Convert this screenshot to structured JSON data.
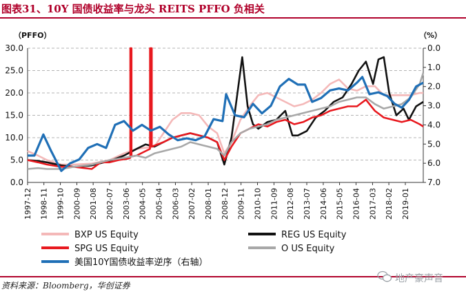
{
  "header": {
    "title": "图表31、10Y 国债收益率与龙头 REITS PFFO 负相关"
  },
  "footer": {
    "source": "资料来源：Bloomberg，华创证券",
    "watermark": "地产豪声音"
  },
  "colors": {
    "brand": "#b0002a",
    "BXP": "#f4b8b8",
    "REG": "#111111",
    "SPG": "#e8191f",
    "O": "#a8a8a8",
    "UST": "#1f6fb6"
  },
  "chart_data": {
    "type": "line",
    "left_axis_label": "（PFFO）",
    "right_axis_label": "（%）",
    "ylim_left": [
      0,
      30
    ],
    "ylim_right": [
      7,
      0
    ],
    "right_axis_inverted": true,
    "yticks_left": [
      "0.0",
      "5.0",
      "10.0",
      "15.0",
      "20.0",
      "25.0",
      "30.0"
    ],
    "yticks_right": [
      "7.0",
      "6.0",
      "5.0",
      "4.0",
      "3.0",
      "2.0",
      "1.0",
      "0.0"
    ],
    "grid": "horizontal dashed",
    "legend_position": "bottom",
    "x_range": [
      1997.92,
      2020.0
    ],
    "xtick_labels": [
      "1997-12",
      "1998-11",
      "1999-10",
      "2000-09",
      "2001-08",
      "2002-07",
      "2003-06",
      "2004-05",
      "2005-04",
      "2006-03",
      "2007-02",
      "2008-01",
      "2008-12",
      "2009-11",
      "2010-10",
      "2011-09",
      "2012-08",
      "2013-07",
      "2014-06",
      "2015-05",
      "2016-04",
      "2017-03",
      "2018-02",
      "2019-01"
    ],
    "xtick_values": [
      1997.92,
      1998.83,
      1999.75,
      2000.67,
      2001.58,
      2002.5,
      2003.42,
      2004.33,
      2005.25,
      2006.17,
      2007.08,
      2008.0,
      2008.92,
      2009.83,
      2010.75,
      2011.67,
      2012.58,
      2013.5,
      2014.42,
      2015.33,
      2016.25,
      2017.17,
      2018.08,
      2019.0
    ],
    "series": [
      {
        "name": "BXP US Equity",
        "axis": "left",
        "color": "#f4b8b8",
        "x": [
          1997.92,
          1998.5,
          1999.0,
          1999.8,
          2000.5,
          2001.5,
          2002.5,
          2003.3,
          2004.0,
          2005.0,
          2005.5,
          2006.0,
          2006.5,
          2007.0,
          2007.5,
          2008.0,
          2008.5,
          2008.9,
          2009.3,
          2009.8,
          2010.3,
          2010.8,
          2011.3,
          2011.8,
          2012.3,
          2012.8,
          2013.3,
          2013.8,
          2014.3,
          2014.8,
          2015.3,
          2015.8,
          2016.3,
          2016.8,
          2017.3,
          2017.8,
          2018.3,
          2018.8,
          2019.3,
          2019.8,
          2020.0
        ],
        "y": [
          7.0,
          6.0,
          5.0,
          4.0,
          4.0,
          4.2,
          5.0,
          6.5,
          7.5,
          8.0,
          11.0,
          14.0,
          15.5,
          15.5,
          15.0,
          12.5,
          11.0,
          6.5,
          9.0,
          14.0,
          17.0,
          19.5,
          20.0,
          19.0,
          18.0,
          17.0,
          17.5,
          18.5,
          20.0,
          22.0,
          23.0,
          21.0,
          20.5,
          21.5,
          21.5,
          19.5,
          19.5,
          19.5,
          19.5,
          20.0,
          20.0
        ]
      },
      {
        "name": "REG US Equity",
        "axis": "left",
        "color": "#111111",
        "x": [
          1997.92,
          1998.5,
          1999.0,
          1999.8,
          2000.5,
          2001.5,
          2002.5,
          2003.3,
          2004.0,
          2004.5,
          2005.0,
          2005.5,
          2006.0,
          2006.5,
          2007.0,
          2007.5,
          2008.0,
          2008.5,
          2008.9,
          2009.3,
          2009.6,
          2009.9,
          2010.2,
          2010.5,
          2010.8,
          2011.3,
          2011.8,
          2012.3,
          2012.7,
          2013.0,
          2013.5,
          2014.0,
          2014.5,
          2015.0,
          2015.5,
          2016.0,
          2016.4,
          2016.8,
          2017.2,
          2017.5,
          2017.8,
          2018.1,
          2018.5,
          2018.9,
          2019.2,
          2019.6,
          2020.0
        ],
        "y": [
          5.0,
          4.8,
          4.5,
          3.8,
          3.5,
          3.8,
          4.8,
          6.0,
          7.5,
          8.5,
          8.0,
          9.0,
          10.0,
          10.5,
          11.0,
          10.5,
          10.0,
          9.0,
          4.0,
          10.0,
          19.0,
          28.0,
          17.0,
          13.0,
          12.0,
          13.5,
          14.0,
          16.0,
          10.5,
          10.5,
          11.5,
          14.5,
          16.0,
          18.0,
          19.0,
          22.0,
          25.0,
          27.0,
          22.0,
          27.5,
          28.0,
          20.0,
          15.0,
          16.5,
          14.0,
          17.0,
          18.0
        ]
      },
      {
        "name": "SPG US Equity",
        "axis": "left",
        "color": "#e8191f",
        "x": [
          1997.92,
          1998.5,
          1999.0,
          1999.8,
          2000.5,
          2001.5,
          2002.0,
          2002.5,
          2003.0,
          2003.5,
          2003.65,
          2003.65,
          2003.72,
          2003.72,
          2004.0,
          2004.5,
          2004.75,
          2004.75,
          2004.85,
          2004.85,
          2005.5,
          2006.0,
          2006.5,
          2007.0,
          2007.5,
          2008.0,
          2008.5,
          2008.9,
          2009.3,
          2009.8,
          2010.3,
          2010.8,
          2011.3,
          2011.8,
          2012.3,
          2012.8,
          2013.3,
          2013.8,
          2014.3,
          2014.8,
          2015.3,
          2015.8,
          2016.3,
          2016.8,
          2017.3,
          2017.8,
          2018.3,
          2018.8,
          2019.3,
          2019.8,
          2020.0
        ],
        "y": [
          5.0,
          4.5,
          4.0,
          3.5,
          3.5,
          3.0,
          4.5,
          4.5,
          5.0,
          5.3,
          5.5,
          30.0,
          30.0,
          5.8,
          6.0,
          7.0,
          7.5,
          30.0,
          30.0,
          8.0,
          9.0,
          10.0,
          10.5,
          11.0,
          10.5,
          10.0,
          9.0,
          5.0,
          8.0,
          11.0,
          12.0,
          13.0,
          12.5,
          13.5,
          14.0,
          13.0,
          13.5,
          14.5,
          15.0,
          16.0,
          16.5,
          17.0,
          17.0,
          18.5,
          16.0,
          14.5,
          14.0,
          13.5,
          14.0,
          13.0,
          12.5
        ]
      },
      {
        "name": "O US Equity",
        "axis": "left",
        "color": "#a8a8a8",
        "x": [
          1997.92,
          1998.5,
          1999.0,
          1999.8,
          2000.5,
          2001.5,
          2002.5,
          2003.3,
          2004.0,
          2004.5,
          2005.0,
          2005.5,
          2006.0,
          2006.5,
          2007.0,
          2007.5,
          2008.0,
          2008.5,
          2008.9,
          2009.3,
          2009.8,
          2010.3,
          2010.8,
          2011.3,
          2011.8,
          2012.3,
          2012.8,
          2013.3,
          2013.8,
          2014.3,
          2014.8,
          2015.3,
          2015.8,
          2016.3,
          2016.8,
          2017.3,
          2017.8,
          2018.3,
          2018.8,
          2019.3,
          2019.8,
          2020.0
        ],
        "y": [
          3.0,
          3.2,
          3.0,
          3.0,
          3.5,
          4.0,
          5.0,
          5.5,
          6.0,
          5.5,
          6.5,
          7.0,
          7.5,
          8.0,
          9.0,
          8.5,
          8.0,
          7.5,
          6.0,
          9.0,
          11.0,
          12.0,
          12.5,
          13.0,
          14.0,
          14.5,
          15.0,
          15.5,
          16.0,
          16.5,
          17.0,
          18.0,
          18.5,
          19.0,
          19.0,
          17.5,
          16.5,
          17.0,
          17.5,
          19.0,
          22.0,
          24.5
        ]
      },
      {
        "name": "美国10Y国债收益率逆序（右轴）",
        "axis": "right",
        "color": "#1f6fb6",
        "x": [
          1997.92,
          1998.3,
          1998.8,
          1999.2,
          1999.8,
          2000.3,
          2000.8,
          2001.3,
          2001.8,
          2002.3,
          2002.8,
          2003.3,
          2003.8,
          2004.3,
          2004.8,
          2005.3,
          2005.8,
          2006.3,
          2006.8,
          2007.3,
          2007.8,
          2008.3,
          2008.8,
          2009.0,
          2009.5,
          2010.0,
          2010.5,
          2011.0,
          2011.5,
          2012.0,
          2012.5,
          2013.0,
          2013.4,
          2013.8,
          2014.3,
          2014.8,
          2015.3,
          2015.8,
          2016.3,
          2016.6,
          2017.0,
          2017.5,
          2018.0,
          2018.4,
          2018.8,
          2019.2,
          2019.6,
          2020.0
        ],
        "y": [
          5.6,
          5.6,
          4.5,
          5.3,
          6.4,
          6.0,
          5.8,
          5.2,
          5.0,
          5.2,
          4.0,
          3.8,
          4.3,
          4.0,
          4.3,
          4.1,
          4.5,
          4.8,
          4.7,
          4.8,
          4.6,
          3.7,
          3.8,
          2.4,
          3.5,
          3.6,
          2.9,
          3.4,
          3.0,
          2.0,
          1.6,
          1.9,
          1.9,
          2.8,
          2.6,
          2.2,
          2.1,
          2.2,
          1.8,
          1.5,
          2.4,
          2.3,
          2.5,
          2.9,
          3.1,
          2.7,
          2.0,
          1.8
        ]
      }
    ],
    "legend": [
      {
        "key": "BXP",
        "label": "BXP US Equity"
      },
      {
        "key": "REG",
        "label": "REG US Equity"
      },
      {
        "key": "SPG",
        "label": "SPG US Equity"
      },
      {
        "key": "O",
        "label": "O US Equity"
      },
      {
        "key": "UST",
        "label": "美国10Y国债收益率逆序（右轴）"
      }
    ]
  }
}
